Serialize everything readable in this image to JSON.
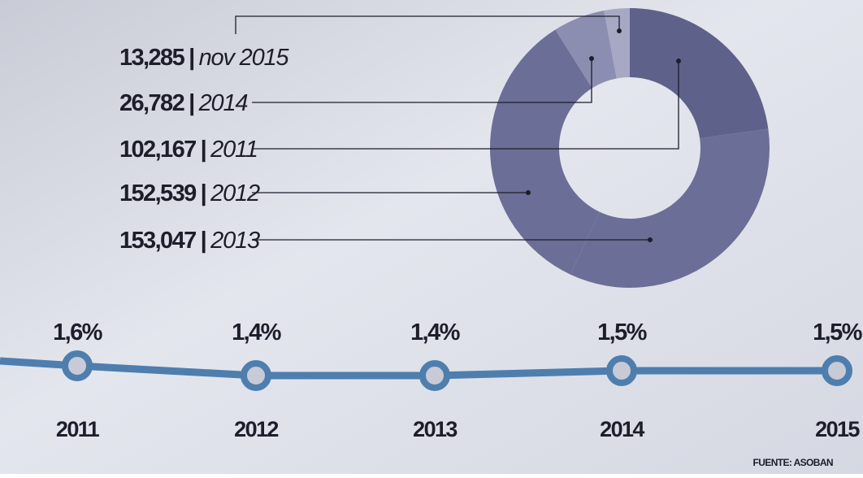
{
  "chart_data": [
    {
      "type": "donut",
      "categories": [
        "nov 2015",
        "2014",
        "2011",
        "2012",
        "2013"
      ],
      "values": [
        13285,
        26782,
        102167,
        152539,
        153047
      ],
      "value_labels": [
        "13,285",
        "26,782",
        "102,167",
        "152,539",
        "153,047"
      ],
      "colors": [
        "#a7a9c4",
        "#8c8eb1",
        "#5e6189",
        "#6b6e96",
        "#6b6e96"
      ]
    },
    {
      "type": "line",
      "categories": [
        "2011",
        "2012",
        "2013",
        "2014",
        "2015"
      ],
      "values": [
        1.6,
        1.4,
        1.4,
        1.5,
        1.5
      ],
      "value_labels": [
        "1,6%",
        "1,4%",
        "1,4%",
        "1,5%",
        "1,5%"
      ],
      "color": "#4e7eae"
    }
  ],
  "source": "FUENTE: ASOBAN"
}
